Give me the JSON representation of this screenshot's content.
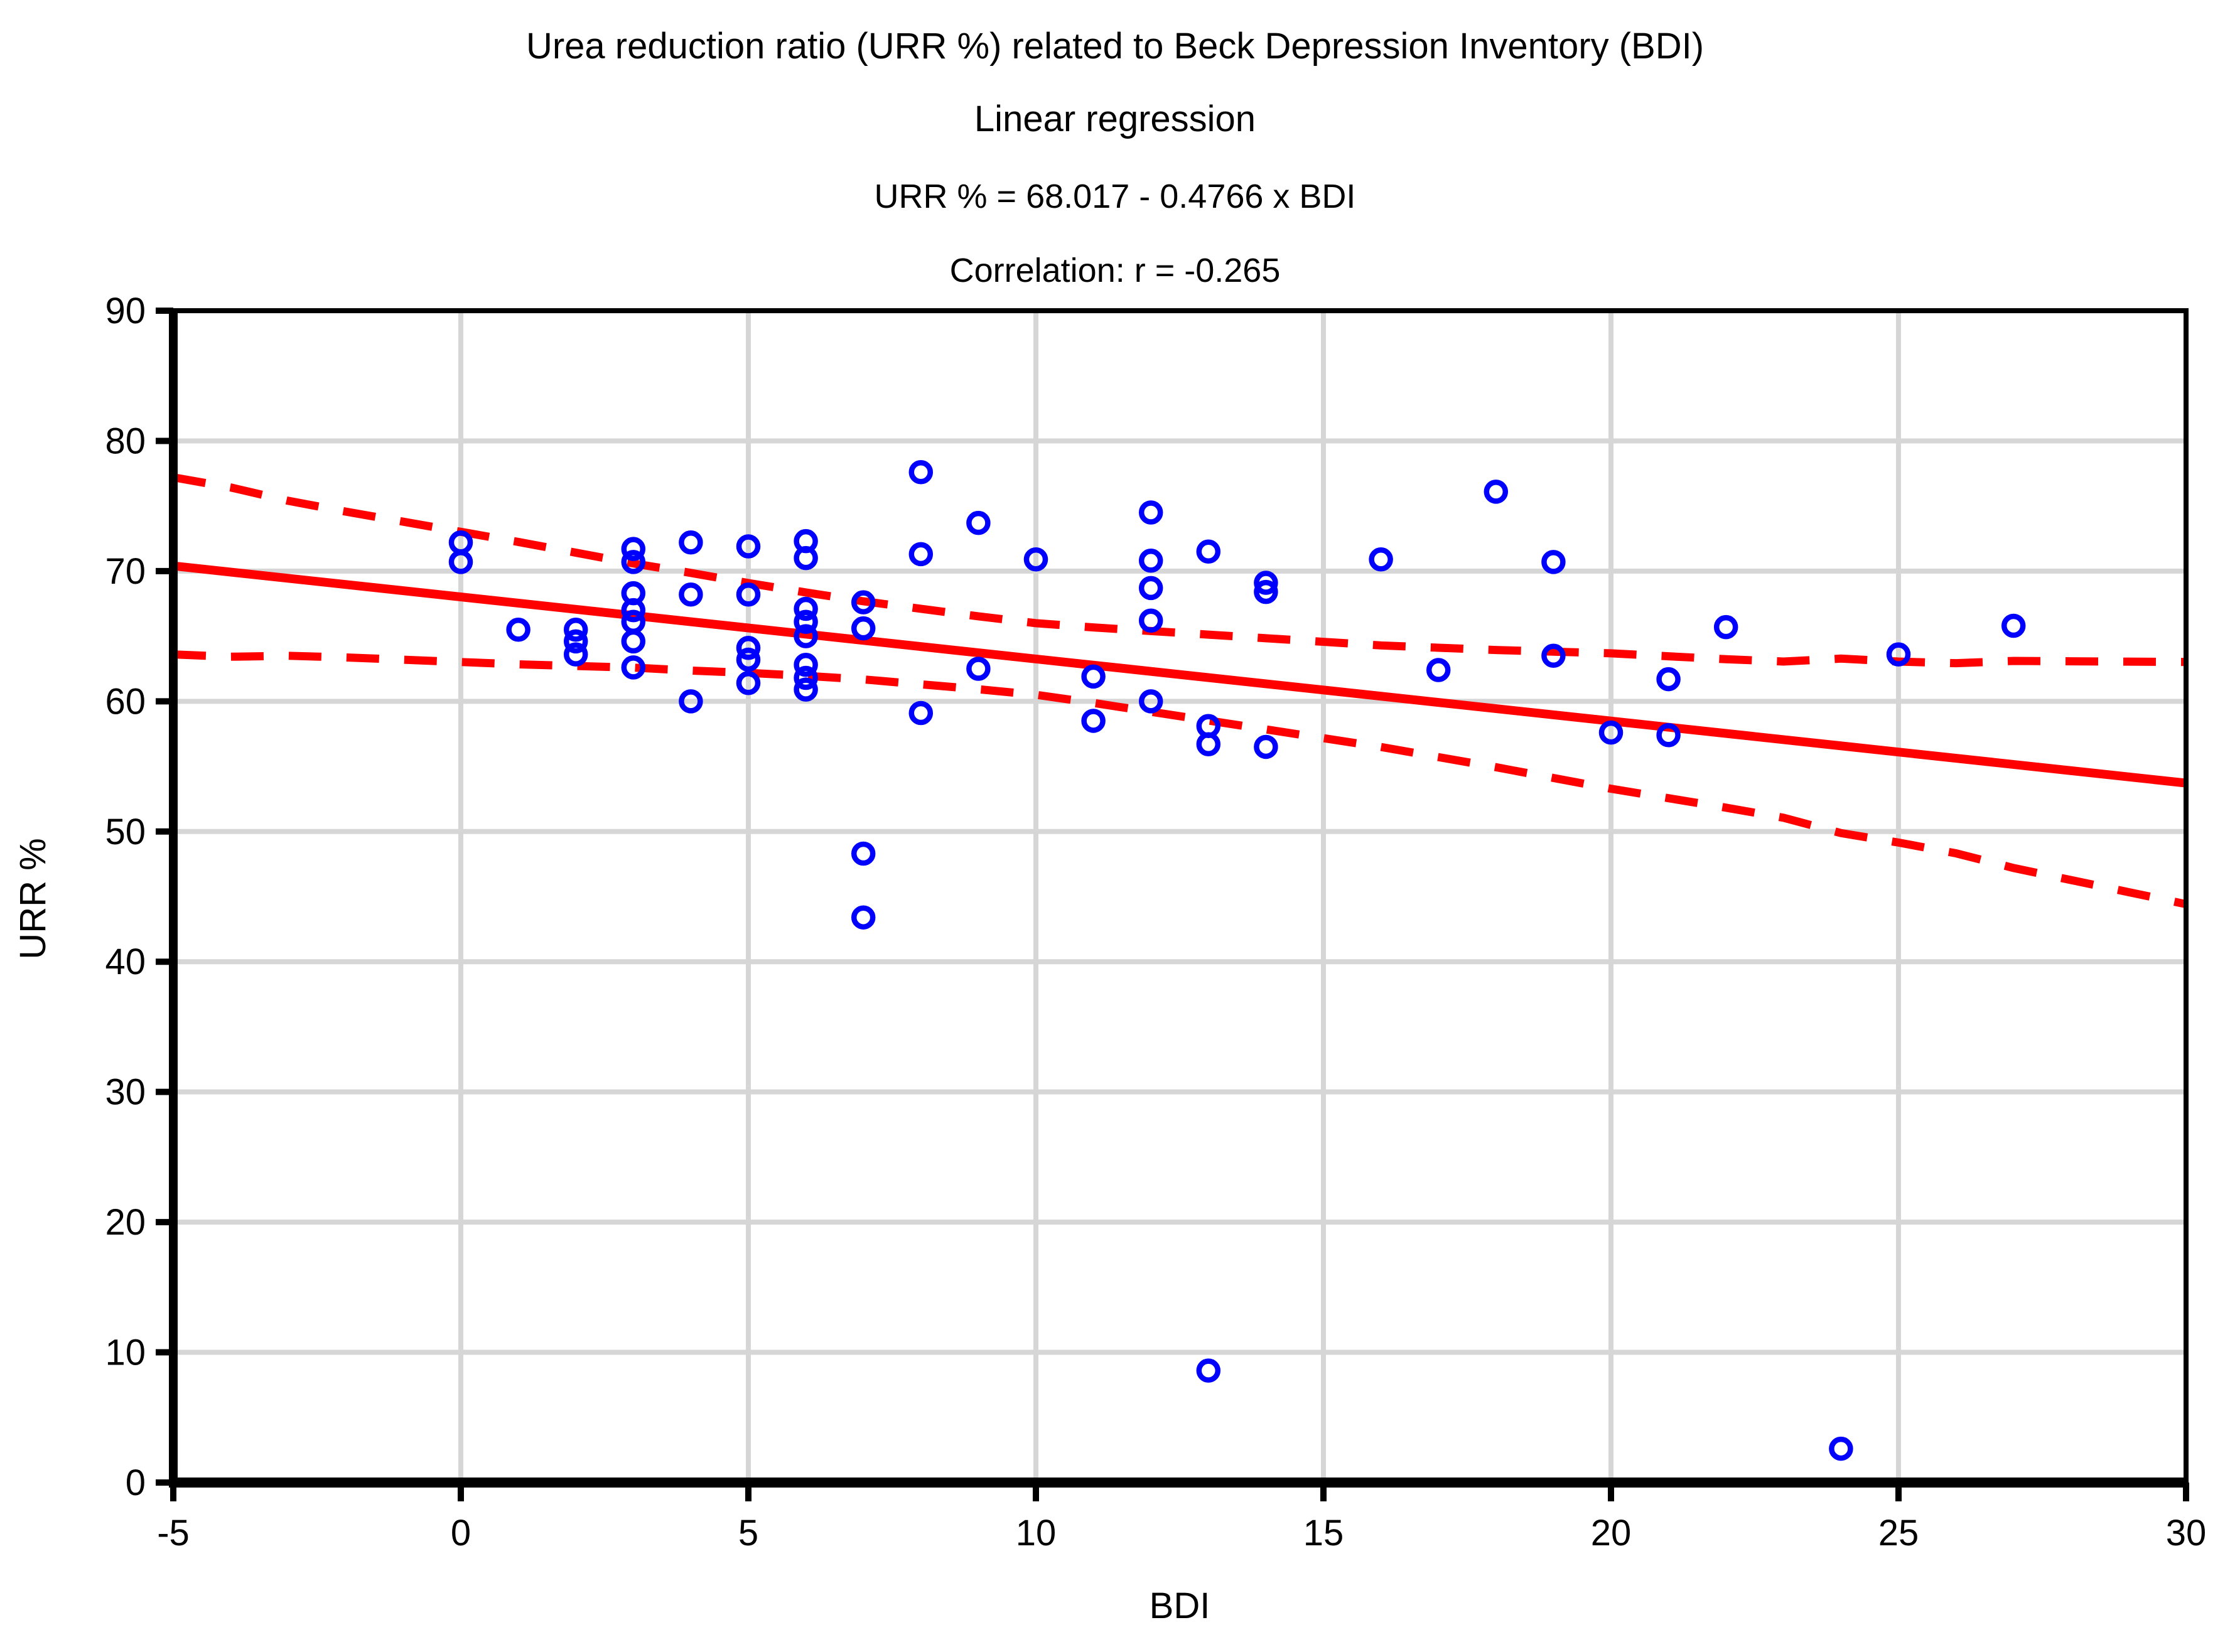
{
  "title": {
    "line1": "Urea reduction ratio (URR %) related to Beck Depression Inventory (BDI)",
    "line2": "Linear regression",
    "equation": "URR % = 68.017 - 0.4766 x BDI",
    "correlation": "Correlation: r =  -0.265"
  },
  "chart_data": {
    "type": "scatter",
    "title": "Urea reduction ratio (URR %) related to Beck Depression Inventory (BDI)",
    "subtitle": "Linear regression",
    "xlabel": "BDI",
    "ylabel": "URR %",
    "xlim": [
      -5,
      30
    ],
    "ylim": [
      0,
      90
    ],
    "x_ticks": [
      -5,
      0,
      5,
      10,
      15,
      20,
      25,
      30
    ],
    "y_ticks": [
      0,
      10,
      20,
      30,
      40,
      50,
      60,
      70,
      80,
      90
    ],
    "grid": true,
    "legend_position": "none",
    "points": [
      [
        0,
        72.2
      ],
      [
        0,
        70.7
      ],
      [
        1,
        65.5
      ],
      [
        2,
        65.5
      ],
      [
        2,
        64.6
      ],
      [
        2,
        63.6
      ],
      [
        3,
        71.7
      ],
      [
        3,
        70.7
      ],
      [
        3,
        68.3
      ],
      [
        3,
        67.0
      ],
      [
        3,
        66.1
      ],
      [
        3,
        64.6
      ],
      [
        3,
        62.6
      ],
      [
        4,
        72.2
      ],
      [
        4,
        68.2
      ],
      [
        4,
        60.0
      ],
      [
        5,
        71.9
      ],
      [
        5,
        68.2
      ],
      [
        5,
        64.1
      ],
      [
        5,
        63.2
      ],
      [
        5,
        61.4
      ],
      [
        6,
        72.3
      ],
      [
        6,
        71.0
      ],
      [
        6,
        67.1
      ],
      [
        6,
        66.1
      ],
      [
        6,
        65.0
      ],
      [
        6,
        62.8
      ],
      [
        6,
        61.8
      ],
      [
        6,
        60.9
      ],
      [
        7,
        67.6
      ],
      [
        7,
        65.6
      ],
      [
        7,
        48.3
      ],
      [
        7,
        43.4
      ],
      [
        8,
        77.6
      ],
      [
        8,
        71.3
      ],
      [
        8,
        59.1
      ],
      [
        9,
        73.7
      ],
      [
        9,
        62.5
      ],
      [
        10,
        70.9
      ],
      [
        11,
        61.9
      ],
      [
        11,
        58.5
      ],
      [
        12,
        74.5
      ],
      [
        12,
        70.8
      ],
      [
        12,
        68.7
      ],
      [
        12,
        66.2
      ],
      [
        12,
        60.0
      ],
      [
        13,
        71.5
      ],
      [
        13,
        58.1
      ],
      [
        13,
        56.7
      ],
      [
        13,
        8.6
      ],
      [
        14,
        69.1
      ],
      [
        14,
        68.4
      ],
      [
        14,
        56.5
      ],
      [
        16,
        70.9
      ],
      [
        17,
        62.4
      ],
      [
        18,
        76.1
      ],
      [
        19,
        70.7
      ],
      [
        19,
        63.5
      ],
      [
        20,
        57.6
      ],
      [
        21,
        61.7
      ],
      [
        21,
        57.4
      ],
      [
        22,
        65.7
      ],
      [
        24,
        2.6
      ],
      [
        25,
        63.6
      ],
      [
        27,
        65.8
      ]
    ],
    "regression": {
      "intercept": 68.017,
      "slope": -0.4766,
      "x_start": -5,
      "x_end": 30
    },
    "confidence_band": {
      "x": [
        -5,
        -4,
        -3,
        -2,
        -1,
        0,
        1,
        2,
        3,
        4,
        5,
        6,
        7,
        8,
        9,
        10,
        11,
        12,
        13,
        14,
        15,
        16,
        17,
        18,
        19,
        20,
        21,
        22,
        23,
        24,
        25,
        26,
        27,
        28,
        29,
        30
      ],
      "half_width": [
        6.8,
        6.5,
        5.95,
        5.6,
        5.3,
        5.0,
        4.7,
        4.35,
        4.0,
        3.75,
        3.45,
        3.2,
        3.0,
        2.9,
        2.8,
        2.75,
        2.9,
        3.1,
        3.3,
        3.5,
        3.7,
        3.9,
        4.2,
        4.5,
        4.85,
        5.2,
        5.45,
        5.7,
        6.0,
        6.7,
        6.95,
        7.3,
        7.95,
        8.4,
        8.85,
        9.3
      ]
    },
    "colors": {
      "marker": "#0000ff",
      "line": "#ff0000",
      "band": "#ff0000",
      "grid": "#d6d6d6",
      "frame": "#000000",
      "text": "#000000"
    }
  }
}
